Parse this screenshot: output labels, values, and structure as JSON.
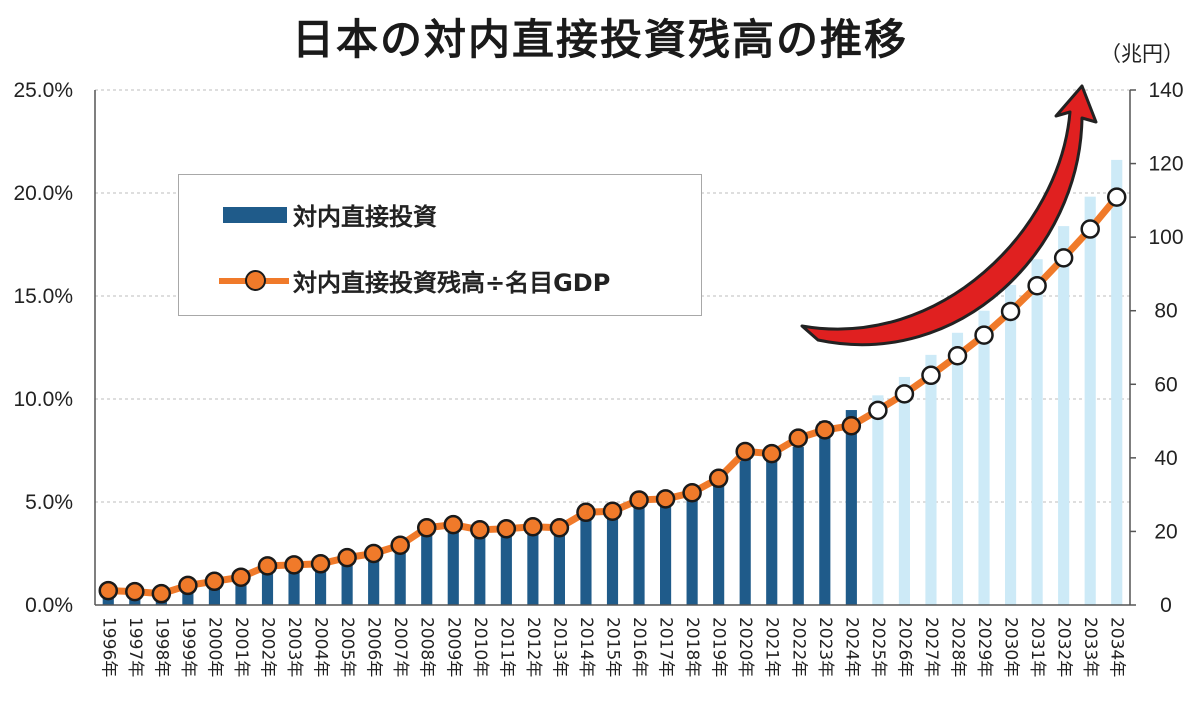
{
  "title": "日本の対内直接投資残高の推移",
  "right_axis_unit": "（兆円）",
  "legend": {
    "bar_label": "対内直接投資",
    "line_label": "対内直接投資残高÷名目GDP"
  },
  "colors": {
    "bar_actual": "#1f5b8a",
    "bar_projected": "#cdeaf7",
    "line": "#f07a2a",
    "marker_actual_fill": "#f07a2a",
    "marker_projected_fill": "#ffffff",
    "marker_stroke": "#1a1a1a",
    "arrow": "#e02020"
  },
  "chart_data": {
    "type": "bar+line",
    "categories": [
      "1996年",
      "1997年",
      "1998年",
      "1999年",
      "2000年",
      "2001年",
      "2002年",
      "2003年",
      "2004年",
      "2005年",
      "2006年",
      "2007年",
      "2008年",
      "2009年",
      "2010年",
      "2011年",
      "2012年",
      "2013年",
      "2014年",
      "2015年",
      "2016年",
      "2017年",
      "2018年",
      "2019年",
      "2020年",
      "2021年",
      "2022年",
      "2023年",
      "2024年",
      "2025年",
      "2026年",
      "2027年",
      "2028年",
      "2029年",
      "2030年",
      "2031年",
      "2032年",
      "2033年",
      "2034年"
    ],
    "projection_start_index": 29,
    "left_axis": {
      "ylim": [
        0,
        25
      ],
      "ticks": [
        "0.0%",
        "5.0%",
        "10.0%",
        "15.0%",
        "20.0%",
        "25.0%"
      ],
      "tick_values": [
        0,
        5,
        10,
        15,
        20,
        25
      ]
    },
    "right_axis": {
      "ylim": [
        0,
        140
      ],
      "ticks": [
        "0",
        "20",
        "40",
        "60",
        "80",
        "100",
        "120",
        "140"
      ],
      "tick_values": [
        0,
        20,
        40,
        60,
        80,
        100,
        120,
        140
      ]
    },
    "grid": true,
    "series": [
      {
        "name": "対内直接投資",
        "type": "bar",
        "axis": "right",
        "values": [
          3.3,
          3.6,
          3.0,
          5.0,
          6.0,
          7.0,
          10.0,
          10.0,
          10.0,
          12.0,
          13.0,
          15.0,
          21.0,
          21.0,
          20.0,
          20.0,
          20.0,
          21.0,
          24.0,
          25.0,
          28.0,
          29.0,
          30.0,
          33.0,
          40.0,
          40.0,
          43.0,
          50.0,
          53.0,
          57.0,
          62.0,
          68.0,
          74.0,
          80.0,
          87.0,
          94.0,
          103.0,
          111.0,
          121.0
        ]
      },
      {
        "name": "対内直接投資残高÷名目GDP",
        "type": "line",
        "axis": "left",
        "values": [
          0.7,
          0.65,
          0.55,
          0.95,
          1.15,
          1.35,
          1.9,
          1.95,
          2.0,
          2.3,
          2.5,
          2.9,
          3.75,
          3.9,
          3.65,
          3.7,
          3.8,
          3.75,
          4.5,
          4.55,
          5.1,
          5.15,
          5.45,
          6.15,
          7.45,
          7.35,
          8.1,
          8.5,
          8.7,
          9.45,
          10.25,
          11.15,
          12.1,
          13.1,
          14.25,
          15.5,
          16.85,
          18.25,
          19.8
        ]
      }
    ]
  }
}
